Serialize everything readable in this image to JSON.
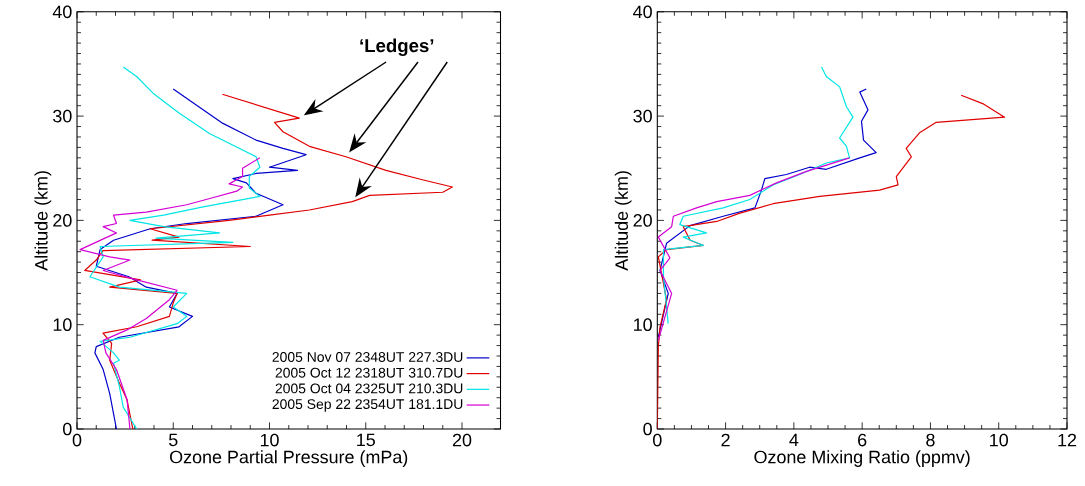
{
  "chart_data": [
    {
      "type": "line",
      "xlabel": "Ozone Partial Pressure (mPa)",
      "ylabel": "Altitude (km)",
      "xlim": [
        0,
        22
      ],
      "ylim": [
        0,
        40
      ],
      "xticks": [
        0,
        5,
        10,
        15,
        20
      ],
      "yticks": [
        0,
        10,
        20,
        30,
        40
      ],
      "legend": "bottom right",
      "annotations": [
        "‘Ledges’"
      ],
      "series": [
        {
          "name": "2005 Nov 07 2348UT 227.3DU",
          "color": "#0000cc",
          "x": [
            5.0,
            6.55,
            7.58,
            9.3,
            10.7,
            11.9,
            10.0,
            11.45,
            9.3,
            8.1,
            8.8,
            9.3,
            10.7,
            9.3,
            5.7,
            3.8,
            1.9,
            1.2,
            1.0,
            2.7,
            3.6,
            5.2,
            4.8,
            6.0,
            5.3,
            2.2,
            1.0,
            0.93,
            1.36,
            1.7,
            2.05
          ],
          "values": [
            32.6,
            30.6,
            29.3,
            27.7,
            26.9,
            26.3,
            25.1,
            24.8,
            24.5,
            24.0,
            23.6,
            22.6,
            21.5,
            20.4,
            19.7,
            19.2,
            18.1,
            17.2,
            15.6,
            14.6,
            13.6,
            13.0,
            11.7,
            10.8,
            9.8,
            8.8,
            7.9,
            7.3,
            5.7,
            3.4,
            0
          ]
        },
        {
          "name": "2005 Oct 12 2318UT 310.7DU",
          "color": "#e00000",
          "x": [
            7.55,
            11.55,
            10.26,
            10.7,
            12.07,
            13.97,
            16.05,
            17.94,
            19.5,
            19.0,
            15.2,
            14.3,
            12.07,
            10.0,
            7.9,
            3.8,
            5.3,
            3.9,
            9.0,
            1.35,
            1.0,
            0.4,
            3.3,
            1.7,
            5.2,
            5.0,
            4.8,
            3.1,
            1.35,
            1.8,
            1.7,
            2.2,
            2.6,
            2.9
          ],
          "values": [
            32.1,
            29.8,
            29.4,
            28.5,
            27.1,
            26.1,
            24.8,
            23.9,
            23.2,
            22.7,
            22.4,
            21.8,
            21.0,
            20.5,
            20.0,
            19.2,
            18.4,
            18.1,
            17.5,
            17.1,
            16.2,
            15.2,
            14.3,
            13.6,
            13.0,
            12.1,
            10.8,
            9.8,
            9.2,
            8.2,
            6.6,
            4.4,
            2.8,
            0
          ]
        },
        {
          "name": "2005 Oct 04 2325UT 210.3DU",
          "color": "#00e5e5",
          "x": [
            2.4,
            3.1,
            3.95,
            5.3,
            6.9,
            7.9,
            9.3,
            9.5,
            8.95,
            8.95,
            9.5,
            8.6,
            6.55,
            4.5,
            2.75,
            4.5,
            7.4,
            4.1,
            8.1,
            1.2,
            1.36,
            0.67,
            2.2,
            5.7,
            5.0,
            5.7,
            5.2,
            2.75,
            1.2,
            1.9,
            2.2,
            1.9,
            2.2,
            2.4,
            3.1
          ],
          "values": [
            34.7,
            33.8,
            32.2,
            30.3,
            28.3,
            27.4,
            26.1,
            25.1,
            24.2,
            23.1,
            22.3,
            22.0,
            21.3,
            20.5,
            20.0,
            19.4,
            18.8,
            18.3,
            17.9,
            17.5,
            16.5,
            14.6,
            13.6,
            13.0,
            11.7,
            10.8,
            10.1,
            8.8,
            8.4,
            7.3,
            6.6,
            6.3,
            4.1,
            2.1,
            0
          ]
        },
        {
          "name": "2005 Sep 22 2354UT 181.1DU",
          "color": "#d400d4",
          "x": [
            9.5,
            8.6,
            8.6,
            7.9,
            8.6,
            8.3,
            6.9,
            5.7,
            3.6,
            1.9,
            2.05,
            1.36,
            2.05,
            0.16,
            1.7,
            2.75,
            1.36,
            3.1,
            5.2,
            4.8,
            3.6,
            2.6,
            1.36,
            1.5,
            2.05,
            2.6,
            2.75
          ],
          "values": [
            26.0,
            25.0,
            24.2,
            23.5,
            23.2,
            22.8,
            22.1,
            21.5,
            20.8,
            20.5,
            19.7,
            19.4,
            18.8,
            17.2,
            16.5,
            16.2,
            15.2,
            14.3,
            13.3,
            12.4,
            10.6,
            9.5,
            8.5,
            7.3,
            5.7,
            2.8,
            0
          ]
        }
      ]
    },
    {
      "type": "line",
      "xlabel": "Ozone Mixing Ratio (ppmv)",
      "ylabel": "Altitude (km)",
      "xlim": [
        0,
        12
      ],
      "ylim": [
        0,
        40
      ],
      "xticks": [
        0,
        2,
        4,
        6,
        8,
        10,
        12
      ],
      "yticks": [
        0,
        10,
        20,
        30,
        40
      ],
      "series": [
        {
          "color": "#0000cc",
          "x": [
            6.12,
            5.93,
            6.17,
            5.98,
            6.04,
            6.41,
            5.93,
            4.95,
            4.46,
            3.78,
            3.15,
            3.05,
            2.86,
            1.93,
            0.96,
            0.27,
            0.08,
            0.32,
            0.03
          ],
          "values": [
            32.6,
            32.3,
            30.6,
            29.5,
            27.7,
            26.5,
            26.0,
            24.9,
            25.1,
            24.4,
            24.0,
            22.9,
            21.2,
            20.4,
            19.5,
            17.8,
            15.2,
            13.0,
            8.8
          ]
        },
        {
          "color": "#e00000",
          "x": [
            8.9,
            9.53,
            10.17,
            8.17,
            7.68,
            7.29,
            7.44,
            7.0,
            7.05,
            6.51,
            4.76,
            3.39,
            2.42,
            1.74,
            0.76,
            0.96,
            1.35,
            0.27,
            0.03,
            0.27,
            0.08,
            0.03,
            0
          ],
          "values": [
            32.0,
            31.2,
            29.9,
            29.4,
            28.4,
            26.9,
            26.1,
            24.2,
            23.4,
            22.9,
            22.3,
            21.6,
            20.7,
            19.9,
            19.4,
            18.1,
            17.6,
            17.2,
            16.5,
            12.4,
            9.8,
            7.9,
            0
          ]
        },
        {
          "color": "#00e5e5",
          "x": [
            4.81,
            4.95,
            5.34,
            5.54,
            5.73,
            5.34,
            5.54,
            5.63,
            4.95,
            4.17,
            3.39,
            2.71,
            1.93,
            0.76,
            0.66,
            1.44,
            0.76,
            1.35,
            0.18,
            0.18,
            0.32
          ],
          "values": [
            34.7,
            33.8,
            32.8,
            30.9,
            29.9,
            27.9,
            27.1,
            26.0,
            25.5,
            24.4,
            23.4,
            22.0,
            21.2,
            20.4,
            19.6,
            18.8,
            18.4,
            17.6,
            17.2,
            14.6,
            10.1
          ]
        },
        {
          "color": "#d400d4",
          "x": [
            5.63,
            4.37,
            3.49,
            2.71,
            1.74,
            1.15,
            0.47,
            0.42,
            0.03,
            0.37,
            0.32,
            0.08,
            0.42,
            0.03
          ],
          "values": [
            26.0,
            24.7,
            23.6,
            22.4,
            21.8,
            21.2,
            20.4,
            19.4,
            18.4,
            16.4,
            16.2,
            15.2,
            13.0,
            8.5
          ]
        }
      ]
    }
  ]
}
